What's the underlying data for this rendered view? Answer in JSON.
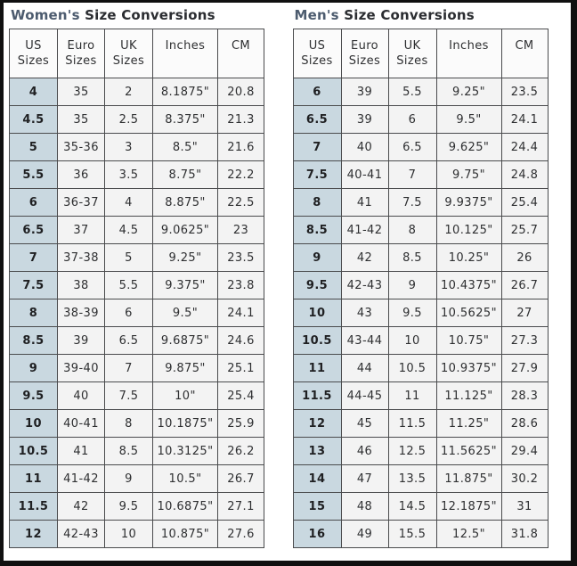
{
  "page": {
    "colors": {
      "frame": "#101010",
      "title_prefix": "#4d5c6f",
      "title_rest": "#2b2d31",
      "table_border": "#4a4b4d",
      "header_bg": "#fbfbfb",
      "cell_bg": "#f3f3f3",
      "first_column_bg": "#c9d8e0"
    }
  },
  "women": {
    "title_prefix": "Women's",
    "title_rest": "Size Conversions",
    "columns": [
      [
        "US",
        "Sizes"
      ],
      [
        "Euro",
        "Sizes"
      ],
      [
        "UK",
        "Sizes"
      ],
      [
        "Inches"
      ],
      [
        "CM"
      ]
    ],
    "rows": [
      [
        "4",
        "35",
        "2",
        "8.1875\"",
        "20.8"
      ],
      [
        "4.5",
        "35",
        "2.5",
        "8.375\"",
        "21.3"
      ],
      [
        "5",
        "35-36",
        "3",
        "8.5\"",
        "21.6"
      ],
      [
        "5.5",
        "36",
        "3.5",
        "8.75\"",
        "22.2"
      ],
      [
        "6",
        "36-37",
        "4",
        "8.875\"",
        "22.5"
      ],
      [
        "6.5",
        "37",
        "4.5",
        "9.0625\"",
        "23"
      ],
      [
        "7",
        "37-38",
        "5",
        "9.25\"",
        "23.5"
      ],
      [
        "7.5",
        "38",
        "5.5",
        "9.375\"",
        "23.8"
      ],
      [
        "8",
        "38-39",
        "6",
        "9.5\"",
        "24.1"
      ],
      [
        "8.5",
        "39",
        "6.5",
        "9.6875\"",
        "24.6"
      ],
      [
        "9",
        "39-40",
        "7",
        "9.875\"",
        "25.1"
      ],
      [
        "9.5",
        "40",
        "7.5",
        "10\"",
        "25.4"
      ],
      [
        "10",
        "40-41",
        "8",
        "10.1875\"",
        "25.9"
      ],
      [
        "10.5",
        "41",
        "8.5",
        "10.3125\"",
        "26.2"
      ],
      [
        "11",
        "41-42",
        "9",
        "10.5\"",
        "26.7"
      ],
      [
        "11.5",
        "42",
        "9.5",
        "10.6875\"",
        "27.1"
      ],
      [
        "12",
        "42-43",
        "10",
        "10.875\"",
        "27.6"
      ]
    ]
  },
  "men": {
    "title_prefix": "Men's",
    "title_rest": "Size Conversions",
    "columns": [
      [
        "US",
        "Sizes"
      ],
      [
        "Euro",
        "Sizes"
      ],
      [
        "UK",
        "Sizes"
      ],
      [
        "Inches"
      ],
      [
        "CM"
      ]
    ],
    "rows": [
      [
        "6",
        "39",
        "5.5",
        "9.25\"",
        "23.5"
      ],
      [
        "6.5",
        "39",
        "6",
        "9.5\"",
        "24.1"
      ],
      [
        "7",
        "40",
        "6.5",
        "9.625\"",
        "24.4"
      ],
      [
        "7.5",
        "40-41",
        "7",
        "9.75\"",
        "24.8"
      ],
      [
        "8",
        "41",
        "7.5",
        "9.9375\"",
        "25.4"
      ],
      [
        "8.5",
        "41-42",
        "8",
        "10.125\"",
        "25.7"
      ],
      [
        "9",
        "42",
        "8.5",
        "10.25\"",
        "26"
      ],
      [
        "9.5",
        "42-43",
        "9",
        "10.4375\"",
        "26.7"
      ],
      [
        "10",
        "43",
        "9.5",
        "10.5625\"",
        "27"
      ],
      [
        "10.5",
        "43-44",
        "10",
        "10.75\"",
        "27.3"
      ],
      [
        "11",
        "44",
        "10.5",
        "10.9375\"",
        "27.9"
      ],
      [
        "11.5",
        "44-45",
        "11",
        "11.125\"",
        "28.3"
      ],
      [
        "12",
        "45",
        "11.5",
        "11.25\"",
        "28.6"
      ],
      [
        "13",
        "46",
        "12.5",
        "11.5625\"",
        "29.4"
      ],
      [
        "14",
        "47",
        "13.5",
        "11.875\"",
        "30.2"
      ],
      [
        "15",
        "48",
        "14.5",
        "12.1875\"",
        "31"
      ],
      [
        "16",
        "49",
        "15.5",
        "12.5\"",
        "31.8"
      ]
    ]
  }
}
